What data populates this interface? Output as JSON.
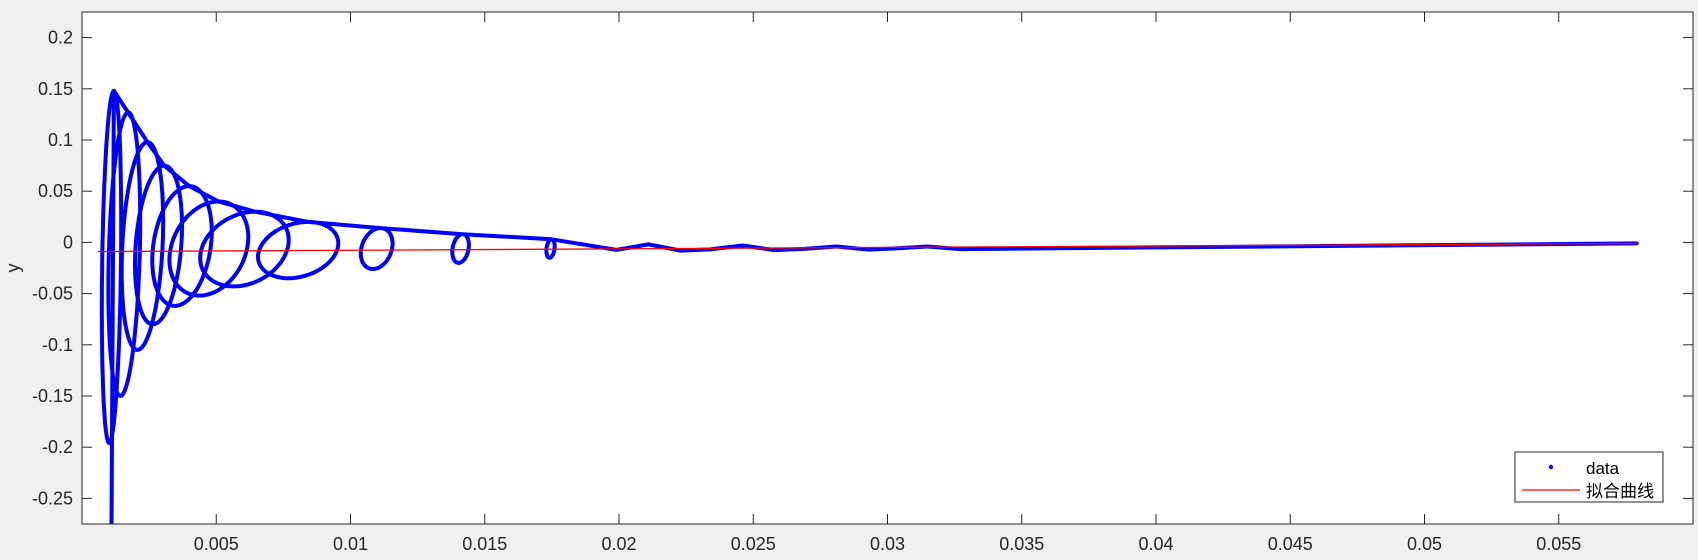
{
  "chart_data": {
    "type": "line",
    "title": "",
    "xlabel": "",
    "ylabel": "y",
    "xlim": [
      0.0,
      0.06
    ],
    "ylim": [
      -0.275,
      0.225
    ],
    "grid": false,
    "box": true,
    "legend_position": "bottom-right",
    "x_ticks": [
      0.005,
      0.01,
      0.015,
      0.02,
      0.025,
      0.03,
      0.035,
      0.04,
      0.045,
      0.05,
      0.055
    ],
    "x_tick_labels": [
      "0.005",
      "0.01",
      "0.015",
      "0.02",
      "0.025",
      "0.03",
      "0.035",
      "0.04",
      "0.045",
      "0.05",
      "0.055"
    ],
    "y_ticks": [
      0.2,
      0.15,
      0.1,
      0.05,
      0,
      -0.05,
      -0.1,
      -0.15,
      -0.2,
      -0.25
    ],
    "y_tick_labels": [
      "0.2",
      "0.15",
      "0.1",
      "0.05",
      "0",
      "-0.05",
      "-0.1",
      "-0.15",
      "-0.2",
      "-0.25"
    ],
    "series": [
      {
        "name": "data",
        "color": "#0000ff",
        "style": "dots-dense",
        "tail_start": {
          "x": 0.0011,
          "y": -0.28
        },
        "tail_end": {
          "x": 0.0579,
          "y": -0.001
        },
        "loops": [
          {
            "x_left": 0.00075,
            "x_right": 0.00145,
            "y_top": 0.148,
            "y_bottom": -0.196
          },
          {
            "x_left": 0.001,
            "x_right": 0.00215,
            "y_top": 0.127,
            "y_bottom": -0.15
          },
          {
            "x_left": 0.0015,
            "x_right": 0.003,
            "y_top": 0.098,
            "y_bottom": -0.105
          },
          {
            "x_left": 0.002,
            "x_right": 0.0037,
            "y_top": 0.075,
            "y_bottom": -0.08
          },
          {
            "x_left": 0.00265,
            "x_right": 0.0048,
            "y_top": 0.055,
            "y_bottom": -0.062
          },
          {
            "x_left": 0.0033,
            "x_right": 0.00615,
            "y_top": 0.04,
            "y_bottom": -0.052
          },
          {
            "x_left": 0.00445,
            "x_right": 0.00765,
            "y_top": 0.03,
            "y_bottom": -0.043
          },
          {
            "x_left": 0.0066,
            "x_right": 0.0095,
            "y_top": 0.02,
            "y_bottom": -0.035
          },
          {
            "x_left": 0.0104,
            "x_right": 0.01155,
            "y_top": 0.014,
            "y_bottom": -0.026
          },
          {
            "x_left": 0.0138,
            "x_right": 0.0144,
            "y_top": 0.008,
            "y_bottom": -0.02
          },
          {
            "x_left": 0.0173,
            "x_right": 0.0176,
            "y_top": 0.003,
            "y_bottom": -0.015
          }
        ],
        "bumps": [
          {
            "x": 0.0211,
            "y": -0.002
          },
          {
            "x": 0.0246,
            "y": -0.003
          },
          {
            "x": 0.0281,
            "y": -0.004
          },
          {
            "x": 0.0315,
            "y": -0.004
          }
        ]
      },
      {
        "name": "拟合曲线",
        "color": "#ff0000",
        "style": "line",
        "x": [
          0.0006,
          0.058
        ],
        "y": [
          -0.009,
          -0.001
        ]
      }
    ]
  }
}
